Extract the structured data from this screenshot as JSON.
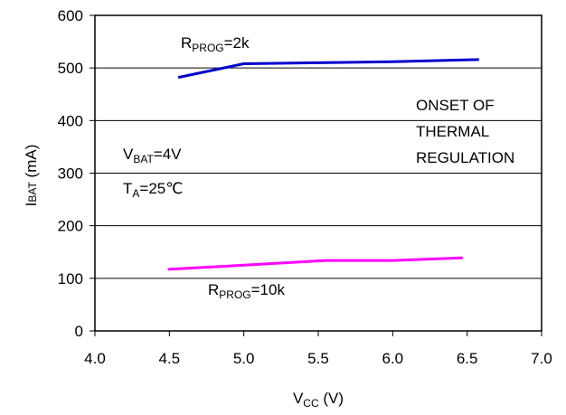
{
  "chart_data": {
    "type": "line",
    "xlabel": {
      "main": "V",
      "sub": "CC",
      "rest": " (V)"
    },
    "ylabel": {
      "main": "I",
      "sub": "BAT",
      "rest": " (mA)"
    },
    "xlim": [
      4.0,
      7.0
    ],
    "ylim": [
      0,
      600
    ],
    "x_ticks": [
      "4.0",
      "4.5",
      "5.0",
      "5.5",
      "6.0",
      "6.5",
      "7.0"
    ],
    "y_ticks": [
      "0",
      "100",
      "200",
      "300",
      "400",
      "500",
      "600"
    ],
    "grid": "horizontal",
    "series": [
      {
        "color": "#0000cc",
        "label": {
          "main": "R",
          "sub": "PROG",
          "rest": "=2k"
        },
        "points": [
          [
            4.56,
            482
          ],
          [
            5.0,
            508
          ],
          [
            5.5,
            510
          ],
          [
            6.0,
            512
          ],
          [
            6.58,
            516
          ]
        ]
      },
      {
        "color": "#ff00ff",
        "label": {
          "main": "R",
          "sub": "PROG",
          "rest": "=10k"
        },
        "points": [
          [
            4.49,
            117
          ],
          [
            5.0,
            125
          ],
          [
            5.55,
            134
          ],
          [
            6.0,
            134
          ],
          [
            6.47,
            139
          ]
        ]
      }
    ],
    "annotations": {
      "onset": [
        "ONSET OF",
        "THERMAL",
        "REGULATION"
      ],
      "vbat": {
        "main": "V",
        "sub": "BAT",
        "rest": "=4V"
      },
      "ta": {
        "main": "T",
        "sub": "A",
        "rest": "=25℃"
      }
    }
  }
}
